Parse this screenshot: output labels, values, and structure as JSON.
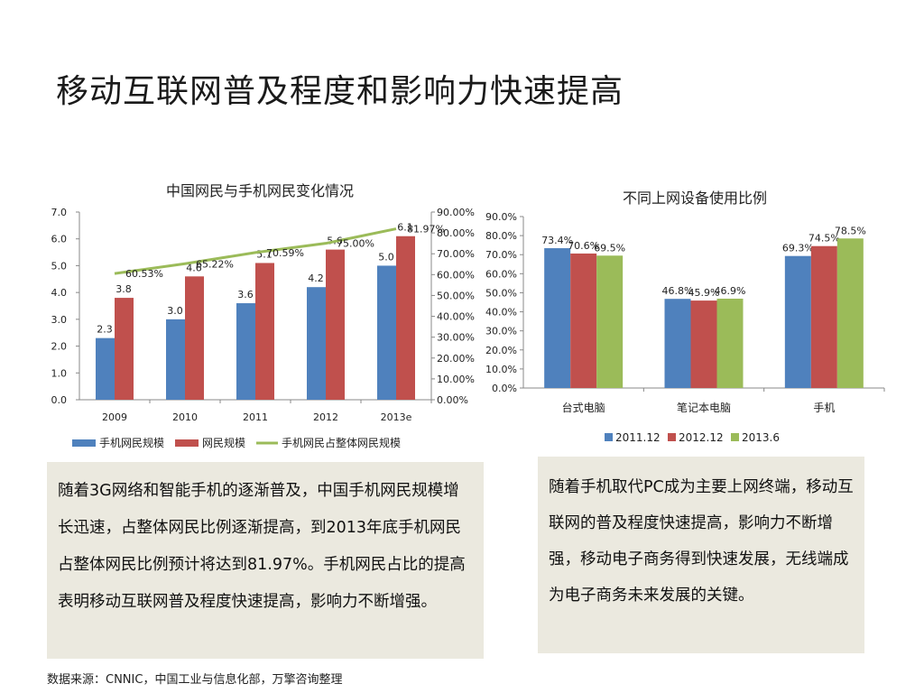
{
  "slide": {
    "title": "移动互联网普及程度和影响力快速提高",
    "left_text": "随着3G网络和智能手机的逐渐普及，中国手机网民规模增长迅速，占整体网民比例逐渐提高，到2013年底手机网民占整体网民比例预计将达到81.97%。手机网民占比的提高表明移动互联网普及程度快速提高，影响力不断增强。",
    "right_text": "随着手机取代PC成为主要上网终端，移动互联网的普及程度快速提高，影响力不断增强，移动电子商务得到快速发展，无线端成为电子商务未来发展的关键。",
    "source": "数据来源：CNNIC，中国工业与信息化部，万擎咨询整理"
  },
  "colors": {
    "blue": "#4f81bd",
    "red": "#c0504d",
    "green": "#9bbb59"
  },
  "chart_data": [
    {
      "type": "bar",
      "title": "中国网民与手机网民变化情况",
      "categories": [
        "2009",
        "2010",
        "2011",
        "2012",
        "2013e"
      ],
      "ylim": [
        0,
        7
      ],
      "yticks": [
        "0.0",
        "1.0",
        "2.0",
        "3.0",
        "4.0",
        "5.0",
        "6.0",
        "7.0"
      ],
      "y2lim": [
        0,
        0.9
      ],
      "y2ticks": [
        "0.00%",
        "10.00%",
        "20.00%",
        "30.00%",
        "40.00%",
        "50.00%",
        "60.00%",
        "70.00%",
        "80.00%",
        "90.00%"
      ],
      "series": [
        {
          "name": "手机网民规模",
          "kind": "bar",
          "values": [
            2.3,
            3.0,
            3.6,
            4.2,
            5.0
          ],
          "labels": [
            "2.3",
            "3.0",
            "3.6",
            "4.2",
            "5.0"
          ]
        },
        {
          "name": "网民规模",
          "kind": "bar",
          "values": [
            3.8,
            4.6,
            5.1,
            5.6,
            6.1
          ],
          "labels": [
            "3.8",
            "4.6",
            "5.1",
            "5.6",
            "6.1"
          ]
        },
        {
          "name": "手机网民占整体网民规模",
          "kind": "line",
          "axis": "right",
          "values": [
            0.6053,
            0.6522,
            0.7059,
            0.75,
            0.8197
          ],
          "labels": [
            "60.53%",
            "65.22%",
            "70.59%",
            "75.00%",
            "81.97%"
          ]
        }
      ],
      "legend": "bottom",
      "grid": false
    },
    {
      "type": "bar",
      "title": "不同上网设备使用比例",
      "categories": [
        "台式电脑",
        "笔记本电脑",
        "手机"
      ],
      "ylim": [
        0,
        0.9
      ],
      "yticks": [
        "0.0%",
        "10.0%",
        "20.0%",
        "30.0%",
        "40.0%",
        "50.0%",
        "60.0%",
        "70.0%",
        "80.0%",
        "90.0%"
      ],
      "series": [
        {
          "name": "2011.12",
          "values": [
            0.734,
            0.468,
            0.693
          ],
          "labels": [
            "73.4%",
            "46.8%",
            "69.3%"
          ]
        },
        {
          "name": "2012.12",
          "values": [
            0.706,
            0.459,
            0.745
          ],
          "labels": [
            "70.6%",
            "45.9%",
            "74.5%"
          ]
        },
        {
          "name": "2013.6",
          "values": [
            0.695,
            0.469,
            0.785
          ],
          "labels": [
            "69.5%",
            "46.9%",
            "78.5%"
          ]
        }
      ],
      "legend": "bottom",
      "grid": false
    }
  ]
}
